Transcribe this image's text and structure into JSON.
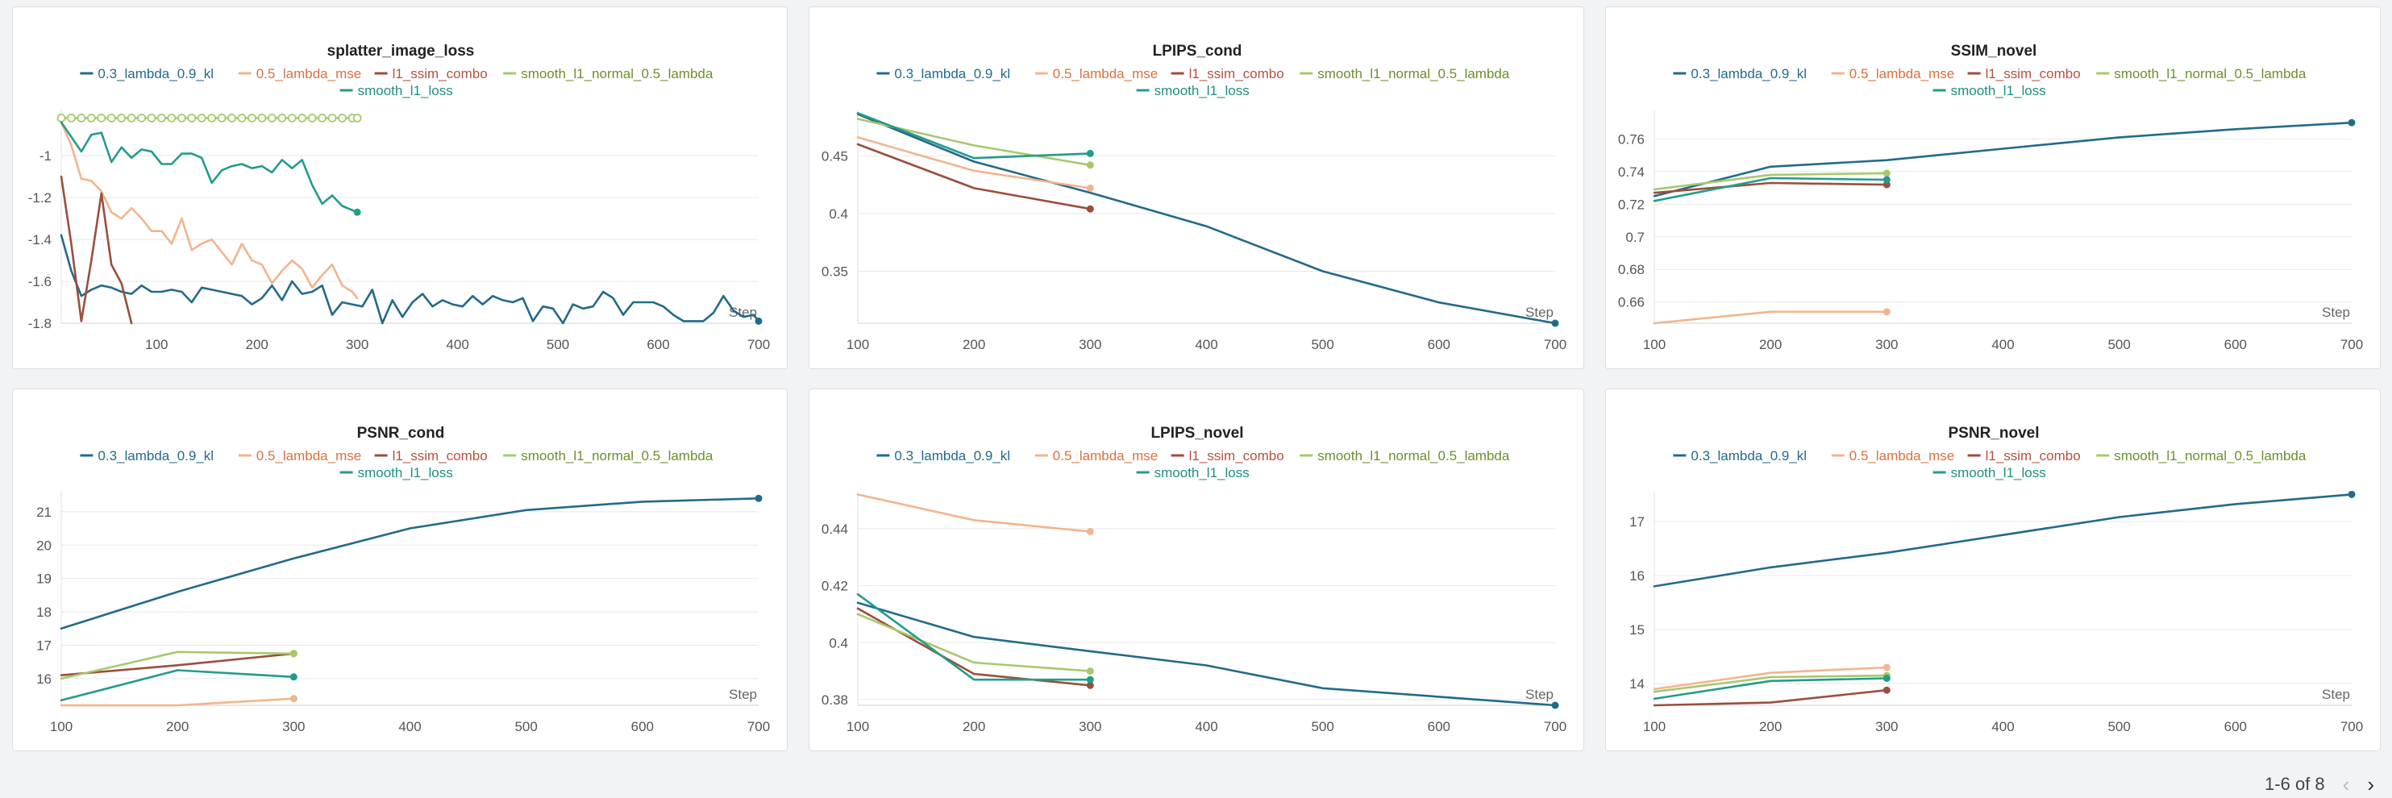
{
  "colors": {
    "0.3_lambda_0.9_kl": "#236a8a",
    "0.5_lambda_mse": "#f2b48e",
    "l1_ssim_combo": "#9a4e3c",
    "smooth_l1_normal_0.5_lambda": "#a7c96e",
    "smooth_l1_loss": "#239c8a"
  },
  "legend_text_colors": {
    "0.3_lambda_0.9_kl": "#236a8a",
    "0.5_lambda_mse": "#d8703f",
    "l1_ssim_combo": "#b5513d",
    "smooth_l1_normal_0.5_lambda": "#6b8f2c",
    "smooth_l1_loss": "#1f8f7e"
  },
  "pager": {
    "text": "1-6 of 8"
  },
  "chart_data": [
    {
      "type": "line",
      "title": "splatter_image_loss",
      "xlabel": "Step",
      "ylabel": "",
      "xlim": [
        5,
        700
      ],
      "ylim": [
        -1.8,
        -0.78
      ],
      "xticks": [
        100,
        200,
        300,
        400,
        500,
        600,
        700
      ],
      "xtick_labels": [
        "100",
        "200",
        "300",
        "400",
        "500",
        "600",
        "700"
      ],
      "yticks": [
        -1.8,
        -1.6,
        -1.4,
        -1.2,
        -1
      ],
      "ytick_labels": [
        "-1.8",
        "-1.6",
        "-1.4",
        "-1.2",
        "-1"
      ],
      "grid": true,
      "legend": "top",
      "series": [
        {
          "name": "0.3_lambda_0.9_kl",
          "endpoint": true,
          "x": [
            5,
            15,
            25,
            35,
            45,
            55,
            65,
            75,
            85,
            95,
            105,
            115,
            125,
            135,
            145,
            155,
            165,
            175,
            185,
            195,
            205,
            215,
            225,
            235,
            245,
            255,
            265,
            275,
            285,
            295,
            305,
            315,
            325,
            335,
            345,
            355,
            365,
            375,
            385,
            395,
            405,
            415,
            425,
            435,
            445,
            455,
            465,
            475,
            485,
            495,
            505,
            515,
            525,
            535,
            545,
            555,
            565,
            575,
            585,
            595,
            605,
            615,
            625,
            635,
            645,
            655,
            665,
            675,
            685,
            695,
            700
          ],
          "y": [
            -1.38,
            -1.55,
            -1.67,
            -1.64,
            -1.62,
            -1.63,
            -1.65,
            -1.66,
            -1.62,
            -1.65,
            -1.65,
            -1.64,
            -1.65,
            -1.7,
            -1.63,
            -1.64,
            -1.65,
            -1.66,
            -1.67,
            -1.71,
            -1.68,
            -1.62,
            -1.69,
            -1.6,
            -1.66,
            -1.65,
            -1.62,
            -1.76,
            -1.7,
            -1.71,
            -1.72,
            -1.64,
            -1.8,
            -1.69,
            -1.77,
            -1.7,
            -1.66,
            -1.72,
            -1.69,
            -1.71,
            -1.72,
            -1.67,
            -1.71,
            -1.67,
            -1.69,
            -1.7,
            -1.68,
            -1.79,
            -1.72,
            -1.73,
            -1.8,
            -1.71,
            -1.73,
            -1.72,
            -1.65,
            -1.68,
            -1.76,
            -1.7,
            -1.7,
            -1.7,
            -1.72,
            -1.76,
            -1.79,
            -1.79,
            -1.79,
            -1.75,
            -1.67,
            -1.74,
            -1.77,
            -1.76,
            -1.79
          ]
        },
        {
          "name": "0.5_lambda_mse",
          "endpoint": false,
          "x": [
            5,
            15,
            25,
            35,
            45,
            55,
            65,
            75,
            85,
            95,
            105,
            115,
            125,
            135,
            145,
            155,
            165,
            175,
            185,
            195,
            205,
            215,
            225,
            235,
            245,
            255,
            265,
            275,
            285,
            295,
            300
          ],
          "y": [
            -0.84,
            -0.95,
            -1.11,
            -1.12,
            -1.17,
            -1.27,
            -1.3,
            -1.25,
            -1.3,
            -1.36,
            -1.36,
            -1.42,
            -1.3,
            -1.45,
            -1.42,
            -1.4,
            -1.46,
            -1.52,
            -1.42,
            -1.5,
            -1.52,
            -1.61,
            -1.55,
            -1.5,
            -1.54,
            -1.63,
            -1.57,
            -1.52,
            -1.62,
            -1.65,
            -1.68
          ]
        },
        {
          "name": "l1_ssim_combo",
          "endpoint": false,
          "x": [
            5,
            15,
            25,
            35,
            45,
            55,
            65,
            75
          ],
          "y": [
            -1.1,
            -1.42,
            -1.79,
            -1.5,
            -1.18,
            -1.52,
            -1.61,
            -1.8
          ]
        },
        {
          "name": "smooth_l1_normal_0.5_lambda",
          "endpoint": false,
          "markers": "hollow-circle",
          "x": [
            5,
            15,
            25,
            35,
            45,
            55,
            65,
            75,
            85,
            95,
            105,
            115,
            125,
            135,
            145,
            155,
            165,
            175,
            185,
            195,
            205,
            215,
            225,
            235,
            245,
            255,
            265,
            275,
            285,
            295,
            300
          ],
          "y": [
            -0.82,
            -0.82,
            -0.82,
            -0.82,
            -0.82,
            -0.82,
            -0.82,
            -0.82,
            -0.82,
            -0.82,
            -0.82,
            -0.82,
            -0.82,
            -0.82,
            -0.82,
            -0.82,
            -0.82,
            -0.82,
            -0.82,
            -0.82,
            -0.82,
            -0.82,
            -0.82,
            -0.82,
            -0.82,
            -0.82,
            -0.82,
            -0.82,
            -0.82,
            -0.82,
            -0.82
          ]
        },
        {
          "name": "smooth_l1_loss",
          "endpoint": true,
          "x": [
            5,
            15,
            25,
            35,
            45,
            55,
            65,
            75,
            85,
            95,
            105,
            115,
            125,
            135,
            145,
            155,
            165,
            175,
            185,
            195,
            205,
            215,
            225,
            235,
            245,
            255,
            265,
            275,
            285,
            295,
            300
          ],
          "y": [
            -0.84,
            -0.91,
            -0.98,
            -0.9,
            -0.89,
            -1.03,
            -0.96,
            -1.01,
            -0.97,
            -0.98,
            -1.04,
            -1.04,
            -0.99,
            -0.99,
            -1.01,
            -1.13,
            -1.07,
            -1.05,
            -1.04,
            -1.06,
            -1.05,
            -1.08,
            -1.02,
            -1.06,
            -1.02,
            -1.14,
            -1.23,
            -1.19,
            -1.24,
            -1.26,
            -1.27
          ]
        }
      ]
    },
    {
      "type": "line",
      "title": "LPIPS_cond",
      "xlabel": "Step",
      "ylabel": "",
      "xlim": [
        100,
        700
      ],
      "ylim": [
        0.305,
        0.49
      ],
      "xticks": [
        100,
        200,
        300,
        400,
        500,
        600,
        700
      ],
      "xtick_labels": [
        "100",
        "200",
        "300",
        "400",
        "500",
        "600",
        "700"
      ],
      "yticks": [
        0.35,
        0.4,
        0.45
      ],
      "ytick_labels": [
        "0.35",
        "0.4",
        "0.45"
      ],
      "grid": true,
      "legend": "top",
      "series": [
        {
          "name": "0.3_lambda_0.9_kl",
          "endpoint": true,
          "x": [
            100,
            200,
            300,
            400,
            500,
            600,
            700
          ],
          "y": [
            0.486,
            0.445,
            0.418,
            0.389,
            0.35,
            0.323,
            0.305
          ]
        },
        {
          "name": "0.5_lambda_mse",
          "endpoint": true,
          "x": [
            100,
            200,
            300
          ],
          "y": [
            0.466,
            0.437,
            0.422
          ]
        },
        {
          "name": "l1_ssim_combo",
          "endpoint": true,
          "x": [
            100,
            200,
            300
          ],
          "y": [
            0.46,
            0.422,
            0.404
          ]
        },
        {
          "name": "smooth_l1_normal_0.5_lambda",
          "endpoint": true,
          "x": [
            100,
            200,
            300
          ],
          "y": [
            0.482,
            0.459,
            0.442
          ]
        },
        {
          "name": "smooth_l1_loss",
          "endpoint": true,
          "x": [
            100,
            200,
            300
          ],
          "y": [
            0.487,
            0.448,
            0.452
          ]
        }
      ]
    },
    {
      "type": "line",
      "title": "SSIM_novel",
      "xlabel": "Step",
      "ylabel": "",
      "xlim": [
        100,
        700
      ],
      "ylim": [
        0.647,
        0.778
      ],
      "xticks": [
        100,
        200,
        300,
        400,
        500,
        600,
        700
      ],
      "xtick_labels": [
        "100",
        "200",
        "300",
        "400",
        "500",
        "600",
        "700"
      ],
      "yticks": [
        0.66,
        0.68,
        0.7,
        0.72,
        0.74,
        0.76
      ],
      "ytick_labels": [
        "0.66",
        "0.68",
        "0.7",
        "0.72",
        "0.74",
        "0.76"
      ],
      "grid": true,
      "legend": "top",
      "series": [
        {
          "name": "0.3_lambda_0.9_kl",
          "endpoint": true,
          "x": [
            100,
            200,
            300,
            400,
            500,
            600,
            700
          ],
          "y": [
            0.725,
            0.743,
            0.747,
            0.754,
            0.761,
            0.766,
            0.77
          ]
        },
        {
          "name": "0.5_lambda_mse",
          "endpoint": true,
          "x": [
            100,
            200,
            300
          ],
          "y": [
            0.647,
            0.654,
            0.654
          ]
        },
        {
          "name": "l1_ssim_combo",
          "endpoint": true,
          "x": [
            100,
            200,
            300
          ],
          "y": [
            0.727,
            0.733,
            0.732
          ]
        },
        {
          "name": "smooth_l1_normal_0.5_lambda",
          "endpoint": true,
          "x": [
            100,
            200,
            300
          ],
          "y": [
            0.729,
            0.738,
            0.739
          ]
        },
        {
          "name": "smooth_l1_loss",
          "endpoint": true,
          "x": [
            100,
            200,
            300
          ],
          "y": [
            0.722,
            0.736,
            0.735
          ]
        }
      ]
    },
    {
      "type": "line",
      "title": "PSNR_cond",
      "xlabel": "Step",
      "ylabel": "",
      "xlim": [
        100,
        700
      ],
      "ylim": [
        15.2,
        21.6
      ],
      "xticks": [
        100,
        200,
        300,
        400,
        500,
        600,
        700
      ],
      "xtick_labels": [
        "100",
        "200",
        "300",
        "400",
        "500",
        "600",
        "700"
      ],
      "yticks": [
        16,
        17,
        18,
        19,
        20,
        21
      ],
      "ytick_labels": [
        "16",
        "17",
        "18",
        "19",
        "20",
        "21"
      ],
      "grid": true,
      "legend": "top",
      "series": [
        {
          "name": "0.3_lambda_0.9_kl",
          "endpoint": true,
          "x": [
            100,
            200,
            300,
            400,
            500,
            600,
            700
          ],
          "y": [
            17.5,
            18.6,
            19.6,
            20.5,
            21.05,
            21.3,
            21.4
          ]
        },
        {
          "name": "0.5_lambda_mse",
          "endpoint": true,
          "x": [
            100,
            200,
            300
          ],
          "y": [
            15.2,
            15.2,
            15.4
          ]
        },
        {
          "name": "l1_ssim_combo",
          "endpoint": true,
          "x": [
            100,
            200,
            300
          ],
          "y": [
            16.1,
            16.4,
            16.75
          ]
        },
        {
          "name": "smooth_l1_normal_0.5_lambda",
          "endpoint": true,
          "x": [
            100,
            200,
            300
          ],
          "y": [
            16.0,
            16.8,
            16.75
          ]
        },
        {
          "name": "smooth_l1_loss",
          "endpoint": true,
          "x": [
            100,
            200,
            300
          ],
          "y": [
            15.35,
            16.25,
            16.05
          ]
        }
      ]
    },
    {
      "type": "line",
      "title": "LPIPS_novel",
      "xlabel": "Step",
      "ylabel": "",
      "xlim": [
        100,
        700
      ],
      "ylim": [
        0.378,
        0.453
      ],
      "xticks": [
        100,
        200,
        300,
        400,
        500,
        600,
        700
      ],
      "xtick_labels": [
        "100",
        "200",
        "300",
        "400",
        "500",
        "600",
        "700"
      ],
      "yticks": [
        0.38,
        0.4,
        0.42,
        0.44
      ],
      "ytick_labels": [
        "0.38",
        "0.4",
        "0.42",
        "0.44"
      ],
      "grid": true,
      "legend": "top",
      "series": [
        {
          "name": "0.3_lambda_0.9_kl",
          "endpoint": true,
          "x": [
            100,
            200,
            300,
            400,
            500,
            600,
            700
          ],
          "y": [
            0.414,
            0.402,
            0.397,
            0.392,
            0.384,
            0.381,
            0.378
          ]
        },
        {
          "name": "0.5_lambda_mse",
          "endpoint": true,
          "x": [
            100,
            200,
            300
          ],
          "y": [
            0.452,
            0.443,
            0.439
          ]
        },
        {
          "name": "l1_ssim_combo",
          "endpoint": true,
          "x": [
            100,
            200,
            300
          ],
          "y": [
            0.412,
            0.389,
            0.385
          ]
        },
        {
          "name": "smooth_l1_normal_0.5_lambda",
          "endpoint": true,
          "x": [
            100,
            200,
            300
          ],
          "y": [
            0.41,
            0.393,
            0.39
          ]
        },
        {
          "name": "smooth_l1_loss",
          "endpoint": true,
          "x": [
            100,
            200,
            300
          ],
          "y": [
            0.417,
            0.387,
            0.387
          ]
        }
      ]
    },
    {
      "type": "line",
      "title": "PSNR_novel",
      "xlabel": "Step",
      "ylabel": "",
      "xlim": [
        100,
        700
      ],
      "ylim": [
        13.6,
        17.55
      ],
      "xticks": [
        100,
        200,
        300,
        400,
        500,
        600,
        700
      ],
      "xtick_labels": [
        "100",
        "200",
        "300",
        "400",
        "500",
        "600",
        "700"
      ],
      "yticks": [
        14,
        15,
        16,
        17
      ],
      "ytick_labels": [
        "14",
        "15",
        "16",
        "17"
      ],
      "grid": true,
      "legend": "top",
      "series": [
        {
          "name": "0.3_lambda_0.9_kl",
          "endpoint": true,
          "x": [
            100,
            200,
            300,
            400,
            500,
            600,
            700
          ],
          "y": [
            15.8,
            16.15,
            16.42,
            16.75,
            17.08,
            17.32,
            17.5
          ]
        },
        {
          "name": "0.5_lambda_mse",
          "endpoint": true,
          "x": [
            100,
            200,
            300
          ],
          "y": [
            13.9,
            14.2,
            14.3
          ]
        },
        {
          "name": "l1_ssim_combo",
          "endpoint": true,
          "x": [
            100,
            200,
            300
          ],
          "y": [
            13.6,
            13.65,
            13.88
          ]
        },
        {
          "name": "smooth_l1_normal_0.5_lambda",
          "endpoint": true,
          "x": [
            100,
            200,
            300
          ],
          "y": [
            13.85,
            14.12,
            14.15
          ]
        },
        {
          "name": "smooth_l1_loss",
          "endpoint": true,
          "x": [
            100,
            200,
            300
          ],
          "y": [
            13.72,
            14.05,
            14.1
          ]
        }
      ]
    }
  ]
}
